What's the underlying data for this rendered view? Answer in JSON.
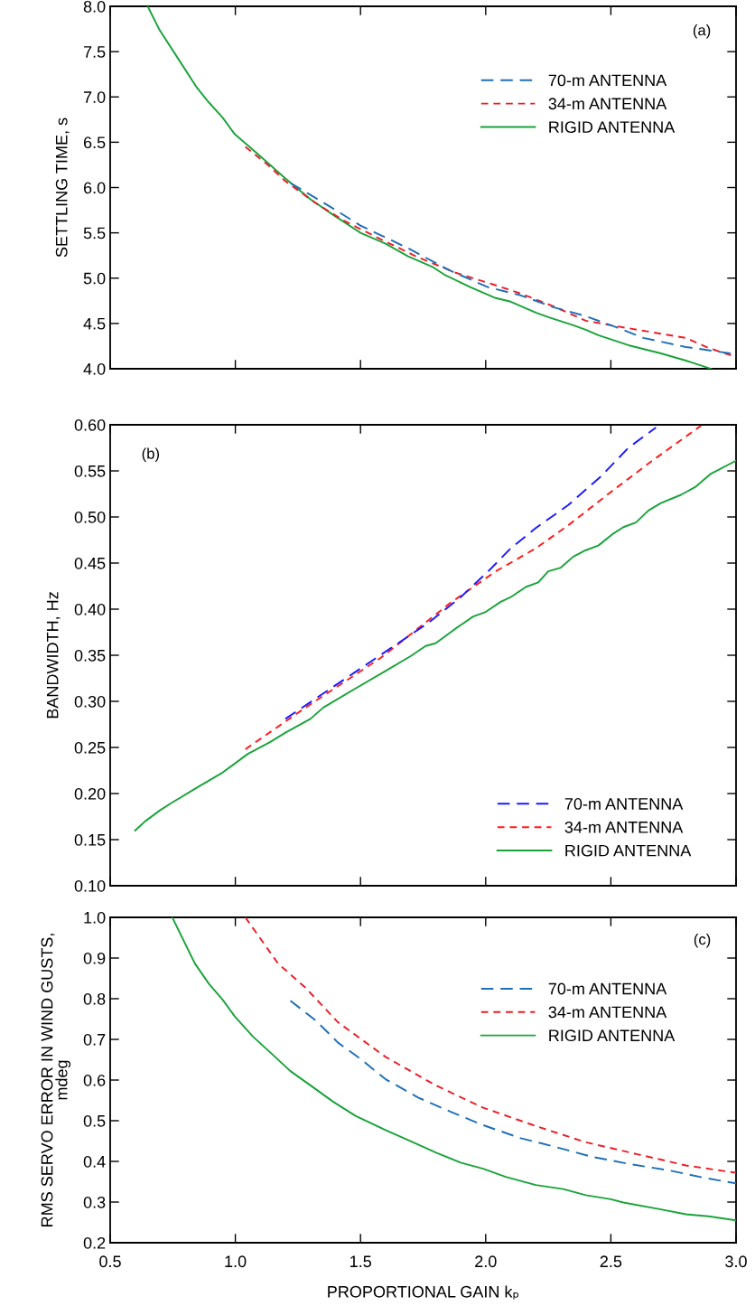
{
  "chart_data": [
    {
      "type": "line",
      "xlim": [
        0.5,
        3.0
      ],
      "xticks": [
        0.5,
        1.0,
        1.5,
        2.0,
        2.5,
        3.0
      ],
      "ylim": [
        4,
        8
      ],
      "ylabel": "SETTLING TIME, s",
      "tick_labels": "y",
      "grid": false,
      "legend": "top right",
      "annotations": [
        "(a)"
      ],
      "yticks": [
        {
          "value": 4,
          "label": "4.0"
        },
        4.5,
        {
          "value": 5,
          "label": "5.0"
        },
        5.5,
        {
          "value": 6,
          "label": "6.0"
        },
        6.5,
        {
          "value": 7,
          "label": "7.0"
        },
        7.5,
        {
          "value": 8,
          "label": "8.0"
        }
      ],
      "series": [
        {
          "name": "70-m ANTENNA",
          "color": "#1f6fb8",
          "line_style": "dashed",
          "x": [
            1.22,
            1.39,
            1.5,
            1.69,
            1.86,
            2.01,
            2.14,
            2.27,
            2.4,
            2.52,
            2.63,
            2.8,
            3.0
          ],
          "values": [
            6.05,
            5.77,
            5.58,
            5.33,
            5.08,
            4.9,
            4.81,
            4.68,
            4.58,
            4.46,
            4.34,
            4.24,
            4.16
          ]
        },
        {
          "name": "34-m ANTENNA",
          "color": "#e8202a",
          "line_style": "dotted",
          "x": [
            1.04,
            1.13,
            1.2,
            1.32,
            1.43,
            1.58,
            1.73,
            1.88,
            2.03,
            2.14,
            2.27,
            2.4,
            2.5,
            2.65,
            2.8,
            2.89,
            3.0
          ],
          "values": [
            6.45,
            6.25,
            6.07,
            5.83,
            5.64,
            5.43,
            5.23,
            5.06,
            4.93,
            4.83,
            4.69,
            4.53,
            4.48,
            4.41,
            4.34,
            4.23,
            4.13
          ]
        },
        {
          "name": "RIGID ANTENNA",
          "color": "#1aa33a",
          "line_style": "solid",
          "x": [
            0.65,
            0.697,
            0.772,
            0.847,
            0.894,
            0.95,
            0.997,
            1.09,
            1.2,
            1.3,
            1.39,
            1.5,
            1.6,
            1.69,
            1.79,
            1.84,
            1.94,
            2.04,
            2.1,
            2.2,
            2.25,
            2.35,
            2.4,
            2.45,
            2.57,
            2.7,
            2.8,
            2.9
          ],
          "values": [
            8.0,
            7.74,
            7.42,
            7.1,
            6.94,
            6.77,
            6.59,
            6.37,
            6.1,
            5.87,
            5.7,
            5.5,
            5.38,
            5.24,
            5.12,
            5.03,
            4.9,
            4.78,
            4.74,
            4.62,
            4.57,
            4.48,
            4.43,
            4.37,
            4.26,
            4.17,
            4.09,
            4.0
          ]
        }
      ]
    },
    {
      "type": "line",
      "xlim": [
        0.5,
        3.0
      ],
      "xticks": [
        0.5,
        1.0,
        1.5,
        2.0,
        2.5,
        3.0
      ],
      "ylim": [
        0.1,
        0.6
      ],
      "ylabel": "BANDWIDTH, Hz",
      "tick_labels": "y",
      "grid": false,
      "legend": "bottom right",
      "annotations": [
        "(b)"
      ],
      "yticks": [
        {
          "value": 0.1,
          "label": "0.10"
        },
        0.15,
        {
          "value": 0.2,
          "label": "0.20"
        },
        0.25,
        {
          "value": 0.3,
          "label": "0.30"
        },
        0.35,
        {
          "value": 0.4,
          "label": "0.40"
        },
        0.45,
        {
          "value": 0.5,
          "label": "0.50"
        },
        0.55,
        {
          "value": 0.6,
          "label": "0.60"
        }
      ],
      "series": [
        {
          "name": "70-m ANTENNA",
          "color": "#1a1aff",
          "line_style": "dashed",
          "x": [
            1.2,
            1.48,
            1.77,
            1.9,
            2.01,
            2.1,
            2.2,
            2.33,
            2.46,
            2.57,
            2.68
          ],
          "values": [
            0.281,
            0.332,
            0.385,
            0.413,
            0.441,
            0.466,
            0.488,
            0.513,
            0.544,
            0.575,
            0.597
          ]
        },
        {
          "name": "34-m ANTENNA",
          "color": "#ff1a1a",
          "line_style": "dotted",
          "x": [
            1.04,
            1.29,
            1.58,
            1.86,
            2.04,
            2.2,
            2.33,
            2.49,
            2.66,
            2.86
          ],
          "values": [
            0.248,
            0.295,
            0.347,
            0.407,
            0.441,
            0.466,
            0.491,
            0.525,
            0.56,
            0.599
          ]
        },
        {
          "name": "RIGID ANTENNA",
          "color": "#1aa33a",
          "line_style": "solid",
          "x": [
            0.6,
            0.64,
            0.7,
            0.74,
            0.85,
            0.95,
            1.05,
            1.14,
            1.2,
            1.3,
            1.35,
            1.48,
            1.6,
            1.7,
            1.76,
            1.8,
            1.88,
            1.95,
            2.0,
            2.06,
            2.1,
            2.16,
            2.21,
            2.25,
            2.3,
            2.35,
            2.4,
            2.45,
            2.51,
            2.55,
            2.6,
            2.65,
            2.7,
            2.78,
            2.84,
            2.9,
            3.0
          ],
          "values": [
            0.16,
            0.17,
            0.182,
            0.189,
            0.207,
            0.223,
            0.243,
            0.256,
            0.266,
            0.281,
            0.293,
            0.314,
            0.333,
            0.349,
            0.36,
            0.363,
            0.379,
            0.392,
            0.397,
            0.408,
            0.413,
            0.424,
            0.429,
            0.441,
            0.445,
            0.457,
            0.464,
            0.469,
            0.482,
            0.489,
            0.494,
            0.507,
            0.515,
            0.524,
            0.533,
            0.547,
            0.561
          ]
        }
      ]
    },
    {
      "type": "line",
      "xlim": [
        0.5,
        3.0
      ],
      "xticks": [
        0.5,
        {
          "value": 1,
          "label": "1.0"
        },
        1.5,
        {
          "value": 2,
          "label": "2.0"
        },
        2.5,
        {
          "value": 3,
          "label": "3.0"
        }
      ],
      "ylim": [
        0.2,
        1.0
      ],
      "xlabel": "PROPORTIONAL GAIN kₚ",
      "ylabel": "RMS SERVO ERROR IN WIND GUSTS,\nmdeg",
      "grid": false,
      "legend": "top right",
      "annotations": [
        "(c)"
      ],
      "yticks": [
        0.2,
        0.3,
        0.4,
        0.5,
        0.6,
        0.7,
        0.8,
        0.9,
        {
          "value": 1,
          "label": "1.0"
        }
      ],
      "series": [
        {
          "name": "70-m ANTENNA",
          "color": "#1f6fb8",
          "line_style": "dashed",
          "x": [
            1.22,
            1.32,
            1.41,
            1.5,
            1.6,
            1.73,
            1.86,
            1.99,
            2.14,
            2.27,
            2.42,
            2.57,
            2.74,
            2.87,
            3.0
          ],
          "values": [
            0.795,
            0.747,
            0.692,
            0.652,
            0.602,
            0.557,
            0.522,
            0.489,
            0.457,
            0.437,
            0.412,
            0.394,
            0.377,
            0.36,
            0.346
          ]
        },
        {
          "name": "34-m ANTENNA",
          "color": "#e8202a",
          "line_style": "dotted",
          "x": [
            1.04,
            1.17,
            1.28,
            1.41,
            1.6,
            1.8,
            1.99,
            2.2,
            2.4,
            2.61,
            2.8,
            3.0
          ],
          "values": [
            1.0,
            0.887,
            0.827,
            0.742,
            0.657,
            0.587,
            0.532,
            0.487,
            0.447,
            0.417,
            0.39,
            0.372
          ]
        },
        {
          "name": "RIGID ANTENNA",
          "color": "#1aa33a",
          "line_style": "solid",
          "x": [
            0.748,
            0.838,
            0.894,
            0.95,
            0.997,
            1.07,
            1.15,
            1.22,
            1.3,
            1.39,
            1.48,
            1.6,
            1.71,
            1.8,
            1.9,
            1.99,
            2.08,
            2.2,
            2.31,
            2.4,
            2.5,
            2.55,
            2.7,
            2.8,
            2.89,
            3.0
          ],
          "values": [
            1.0,
            0.887,
            0.837,
            0.797,
            0.757,
            0.707,
            0.662,
            0.622,
            0.587,
            0.547,
            0.512,
            0.477,
            0.447,
            0.422,
            0.397,
            0.382,
            0.362,
            0.342,
            0.332,
            0.317,
            0.307,
            0.299,
            0.282,
            0.27,
            0.265,
            0.255
          ]
        }
      ]
    }
  ]
}
